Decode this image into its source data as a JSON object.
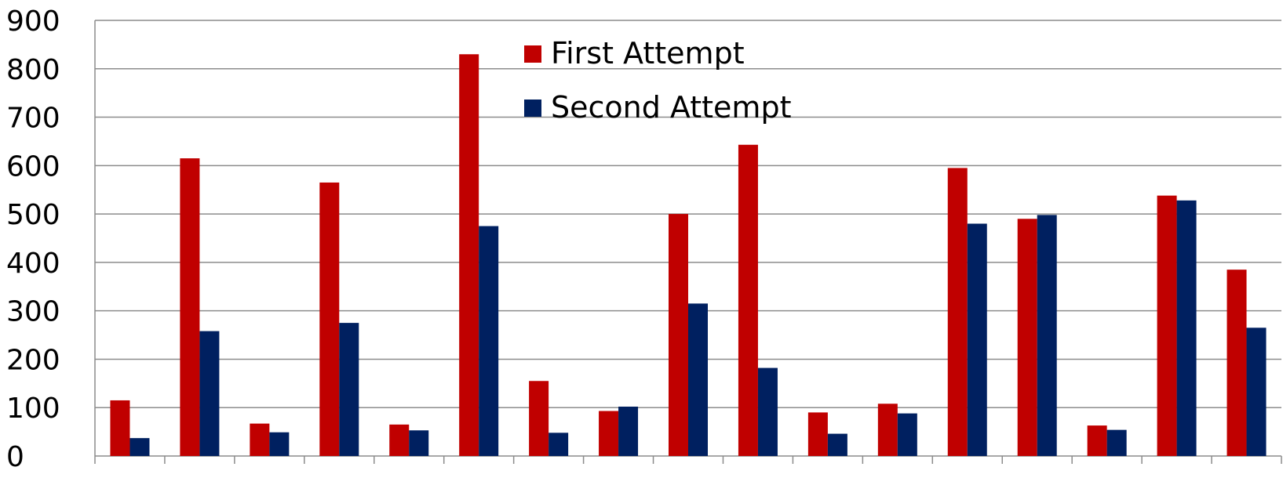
{
  "chart_data": {
    "type": "bar",
    "title": "",
    "xlabel": "",
    "ylabel": "",
    "ylim": [
      0,
      900
    ],
    "yticks": [
      0,
      100,
      200,
      300,
      400,
      500,
      600,
      700,
      800,
      900
    ],
    "ytick_labels": [
      "0",
      "100",
      "200",
      "300",
      "400",
      "500",
      "600",
      "700",
      "800",
      "900"
    ],
    "grid": "horizontal",
    "legend_position": "top-center",
    "categories_count": 17,
    "series": [
      {
        "name": "First Attempt",
        "color": "#C00000",
        "values": [
          115,
          615,
          67,
          565,
          65,
          830,
          155,
          93,
          500,
          643,
          90,
          108,
          595,
          490,
          63,
          538,
          385
        ]
      },
      {
        "name": "Second Attempt",
        "color": "#002060",
        "values": [
          37,
          258,
          49,
          275,
          53,
          475,
          48,
          102,
          315,
          182,
          46,
          88,
          480,
          498,
          54,
          528,
          265
        ]
      }
    ]
  }
}
